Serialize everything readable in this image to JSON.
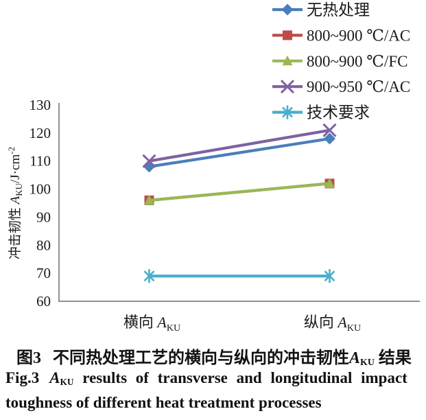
{
  "figure": {
    "caption_cn": {
      "tag": "图3",
      "before_var": "不同热处理工艺的横向与纵向的冲击韧性",
      "var": "A",
      "var_sub": "KU",
      "after_var": " 结果"
    },
    "caption_en": {
      "tag": "Fig.3",
      "var": "A",
      "var_sub": "KU",
      "line1_rest": " results of transverse and longitudinal impact",
      "line2": "toughness of different heat treatment processes"
    }
  },
  "chart_data": {
    "type": "line",
    "title": "",
    "categories": [
      "横向 A_KU",
      "纵向 A_KU"
    ],
    "x_tick_labels": [
      {
        "text": "横向 ",
        "var": "A",
        "sub": "KU"
      },
      {
        "text": "纵向 ",
        "var": "A",
        "sub": "KU"
      }
    ],
    "xlabel": "",
    "ylabel": "冲击韧性 A_KU/J·cm⁻²",
    "ylabel_parts": {
      "text": "冲击韧性 ",
      "var": "A",
      "sub": "KU",
      "unit": "/J·cm",
      "sup": "-2"
    },
    "ylim": [
      60,
      130
    ],
    "yticks": [
      60,
      70,
      80,
      90,
      100,
      110,
      120,
      130
    ],
    "grid": false,
    "legend_position": "top-right",
    "axis_color": "#808080",
    "label_color": "#1a1a1a",
    "series": [
      {
        "name": "无热处理",
        "marker": "diamond",
        "color": "#4A7EBB",
        "values": [
          108,
          118
        ]
      },
      {
        "name": "800~900 ℃/AC",
        "marker": "square",
        "color": "#BE4B48",
        "values": [
          96,
          102
        ]
      },
      {
        "name": "800~900 ℃/FC",
        "marker": "triangle",
        "color": "#98B954",
        "values": [
          96,
          102
        ]
      },
      {
        "name": "900~950 ℃/AC",
        "marker": "xmark",
        "color": "#7E62A1",
        "values": [
          110,
          121
        ]
      },
      {
        "name": "技术要求",
        "marker": "star",
        "color": "#45B0CE",
        "values": [
          69,
          69
        ]
      }
    ]
  }
}
